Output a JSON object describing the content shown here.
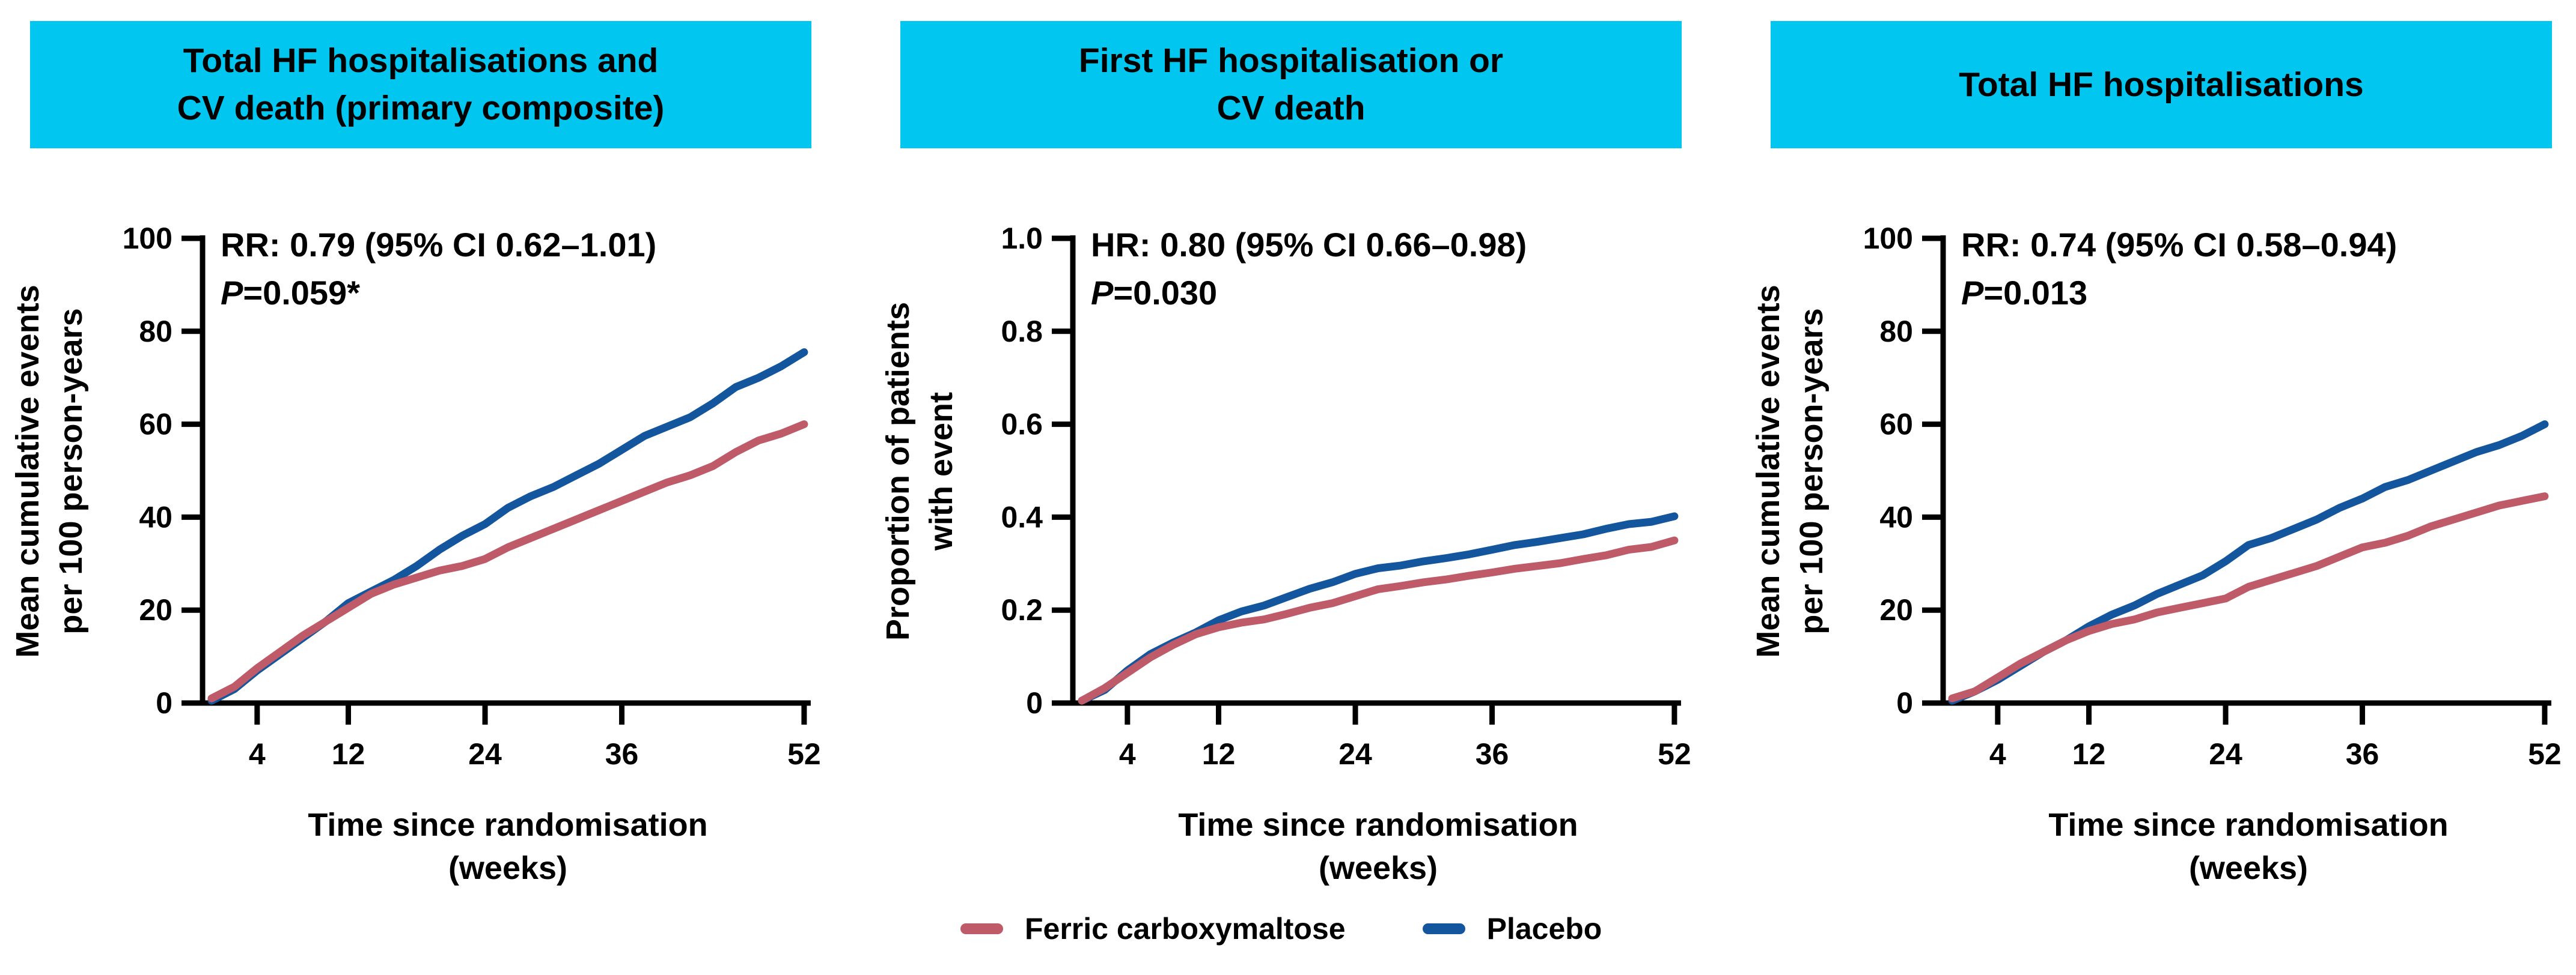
{
  "figure": {
    "banner_color": "#00c6f0",
    "legend": {
      "items": [
        {
          "label": "Ferric carboxymaltose",
          "color": "#bf5a68"
        },
        {
          "label": "Placebo",
          "color": "#14569d"
        }
      ]
    }
  },
  "chart_data": [
    {
      "type": "line",
      "title": "Total HF hospitalisations and CV death (primary composite)",
      "title_lines": [
        "Total HF hospitalisations and",
        "CV death (primary composite)"
      ],
      "annotation": {
        "stat": "RR: 0.79 (95% CI 0.62–1.01)",
        "p_label": "P",
        "p_value": "=0.059*"
      },
      "ylabel_lines": [
        "Mean cumulative events",
        "per 100 person-years"
      ],
      "xlabel_lines": [
        "Time since randomisation",
        "(weeks)"
      ],
      "xlim": [
        0,
        52
      ],
      "ylim": [
        0,
        100
      ],
      "grid": false,
      "legend_position": "bottom-center",
      "xticks": [
        {
          "value": 4,
          "label": "4"
        },
        {
          "value": 12,
          "label": "12"
        },
        {
          "value": 24,
          "label": "24"
        },
        {
          "value": 36,
          "label": "36"
        },
        {
          "value": 52,
          "label": "52"
        }
      ],
      "yticks": [
        {
          "value": 0,
          "label": "0"
        },
        {
          "value": 20,
          "label": "20"
        },
        {
          "value": 40,
          "label": "40"
        },
        {
          "value": 60,
          "label": "60"
        },
        {
          "value": 80,
          "label": "80"
        },
        {
          "value": 100,
          "label": "100"
        }
      ],
      "series": [
        {
          "name": "Placebo",
          "color": "#14569d",
          "x": [
            0,
            2,
            4,
            6,
            8,
            10,
            12,
            14,
            16,
            18,
            20,
            22,
            24,
            26,
            28,
            30,
            32,
            34,
            36,
            38,
            40,
            42,
            44,
            46,
            48,
            50,
            52
          ],
          "y": [
            0.5,
            3,
            7,
            10.5,
            14,
            17.5,
            21.5,
            24,
            26.5,
            29.5,
            33,
            36,
            38.5,
            42,
            44.5,
            46.5,
            49,
            51.5,
            54.5,
            57.5,
            59.5,
            61.5,
            64.5,
            68,
            70,
            72.5,
            75.5
          ]
        },
        {
          "name": "Ferric carboxymaltose",
          "color": "#bf5a68",
          "x": [
            0,
            2,
            4,
            6,
            8,
            10,
            12,
            14,
            16,
            18,
            20,
            22,
            24,
            26,
            28,
            30,
            32,
            34,
            36,
            38,
            40,
            42,
            44,
            46,
            48,
            50,
            52
          ],
          "y": [
            1,
            3.5,
            7.5,
            11,
            14.5,
            17.5,
            20.5,
            23.5,
            25.5,
            27,
            28.5,
            29.5,
            31,
            33.5,
            35.5,
            37.5,
            39.5,
            41.5,
            43.5,
            45.5,
            47.5,
            49,
            51,
            54,
            56.5,
            58,
            60
          ]
        }
      ]
    },
    {
      "type": "line",
      "title": "First HF hospitalisation or CV death",
      "title_lines": [
        "First HF hospitalisation or",
        "CV death"
      ],
      "annotation": {
        "stat": "HR: 0.80 (95% CI 0.66–0.98)",
        "p_label": "P",
        "p_value": "=0.030"
      },
      "ylabel_lines": [
        "Proportion of patients",
        "with event"
      ],
      "xlabel_lines": [
        "Time since randomisation",
        "(weeks)"
      ],
      "xlim": [
        0,
        52
      ],
      "ylim": [
        0,
        1.0
      ],
      "grid": false,
      "legend_position": "bottom-center",
      "xticks": [
        {
          "value": 4,
          "label": "4"
        },
        {
          "value": 12,
          "label": "12"
        },
        {
          "value": 24,
          "label": "24"
        },
        {
          "value": 36,
          "label": "36"
        },
        {
          "value": 52,
          "label": "52"
        }
      ],
      "yticks": [
        {
          "value": 0,
          "label": "0"
        },
        {
          "value": 0.2,
          "label": "0.2"
        },
        {
          "value": 0.4,
          "label": "0.4"
        },
        {
          "value": 0.6,
          "label": "0.6"
        },
        {
          "value": 0.8,
          "label": "0.8"
        },
        {
          "value": 1.0,
          "label": "1.0"
        }
      ],
      "series": [
        {
          "name": "Placebo",
          "color": "#14569d",
          "x": [
            0,
            2,
            4,
            6,
            8,
            10,
            12,
            14,
            16,
            18,
            20,
            22,
            24,
            26,
            28,
            30,
            32,
            34,
            36,
            38,
            40,
            42,
            44,
            46,
            48,
            50,
            52
          ],
          "y": [
            0.005,
            0.028,
            0.07,
            0.105,
            0.13,
            0.152,
            0.178,
            0.197,
            0.21,
            0.228,
            0.246,
            0.26,
            0.278,
            0.29,
            0.296,
            0.305,
            0.312,
            0.32,
            0.33,
            0.34,
            0.347,
            0.355,
            0.363,
            0.375,
            0.385,
            0.39,
            0.402
          ]
        },
        {
          "name": "Ferric carboxymaltose",
          "color": "#bf5a68",
          "x": [
            0,
            2,
            4,
            6,
            8,
            10,
            12,
            14,
            16,
            18,
            20,
            22,
            24,
            26,
            28,
            30,
            32,
            34,
            36,
            38,
            40,
            42,
            44,
            46,
            48,
            50,
            52
          ],
          "y": [
            0.005,
            0.032,
            0.065,
            0.098,
            0.125,
            0.148,
            0.163,
            0.173,
            0.18,
            0.192,
            0.205,
            0.215,
            0.23,
            0.245,
            0.252,
            0.26,
            0.266,
            0.274,
            0.281,
            0.289,
            0.295,
            0.301,
            0.31,
            0.318,
            0.33,
            0.336,
            0.35
          ]
        }
      ]
    },
    {
      "type": "line",
      "title": "Total HF hospitalisations",
      "title_lines": [
        "Total HF hospitalisations"
      ],
      "annotation": {
        "stat": "RR: 0.74 (95% CI 0.58–0.94)",
        "p_label": "P",
        "p_value": "=0.013"
      },
      "ylabel_lines": [
        "Mean cumulative events",
        "per 100 person-years"
      ],
      "xlabel_lines": [
        "Time since randomisation",
        "(weeks)"
      ],
      "xlim": [
        0,
        52
      ],
      "ylim": [
        0,
        100
      ],
      "grid": false,
      "legend_position": "bottom-center",
      "xticks": [
        {
          "value": 4,
          "label": "4"
        },
        {
          "value": 12,
          "label": "12"
        },
        {
          "value": 24,
          "label": "24"
        },
        {
          "value": 36,
          "label": "36"
        },
        {
          "value": 52,
          "label": "52"
        }
      ],
      "yticks": [
        {
          "value": 0,
          "label": "0"
        },
        {
          "value": 20,
          "label": "20"
        },
        {
          "value": 40,
          "label": "40"
        },
        {
          "value": 60,
          "label": "60"
        },
        {
          "value": 80,
          "label": "80"
        },
        {
          "value": 100,
          "label": "100"
        }
      ],
      "series": [
        {
          "name": "Placebo",
          "color": "#14569d",
          "x": [
            0,
            2,
            4,
            6,
            8,
            10,
            12,
            14,
            16,
            18,
            20,
            22,
            24,
            26,
            28,
            30,
            32,
            34,
            36,
            38,
            40,
            42,
            44,
            46,
            48,
            50,
            52
          ],
          "y": [
            0.5,
            2.5,
            5,
            8,
            11,
            13.5,
            16.5,
            19,
            21,
            23.5,
            25.5,
            27.5,
            30.5,
            34,
            35.5,
            37.5,
            39.5,
            42,
            44,
            46.5,
            48,
            50,
            52,
            54,
            55.5,
            57.5,
            60
          ]
        },
        {
          "name": "Ferric carboxymaltose",
          "color": "#bf5a68",
          "x": [
            0,
            2,
            4,
            6,
            8,
            10,
            12,
            14,
            16,
            18,
            20,
            22,
            24,
            26,
            28,
            30,
            32,
            34,
            36,
            38,
            40,
            42,
            44,
            46,
            48,
            50,
            52
          ],
          "y": [
            1,
            2.5,
            5.5,
            8.5,
            11,
            13.5,
            15.5,
            17,
            18,
            19.5,
            20.5,
            21.5,
            22.5,
            25,
            26.5,
            28,
            29.5,
            31.5,
            33.5,
            34.5,
            36,
            38,
            39.5,
            41,
            42.5,
            43.5,
            44.5
          ]
        }
      ]
    }
  ]
}
